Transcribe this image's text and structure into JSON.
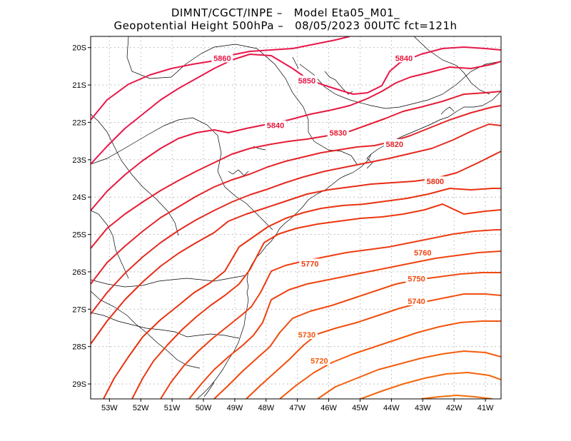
{
  "header": {
    "line1": "DIMNT/CGCT/INPE –   Model Eta05_M01_",
    "line2": "Geopotential Height 500hPa –   08/05/2023 00UTC fct=121h"
  },
  "axes": {
    "lon_ticks": [
      "53W",
      "52W",
      "51W",
      "50W",
      "49W",
      "48W",
      "47W",
      "46W",
      "45W",
      "44W",
      "43W",
      "42W",
      "41W"
    ],
    "lat_ticks": [
      "20S",
      "21S",
      "22S",
      "23S",
      "24S",
      "25S",
      "26S",
      "27S",
      "28S",
      "29S"
    ],
    "lon_range": [
      -53.6,
      -40.5
    ],
    "lat_range": [
      -29.4,
      -19.7
    ]
  },
  "contour_labels": [
    {
      "text": "5860",
      "lon": -49.4,
      "lat": -20.3,
      "color": "#e8174a"
    },
    {
      "text": "5850",
      "lon": -46.7,
      "lat": -20.9,
      "color": "#e8174a"
    },
    {
      "text": "5840",
      "lon": -43.6,
      "lat": -20.3,
      "color": "#e6183f"
    },
    {
      "text": "5840",
      "lon": -47.7,
      "lat": -22.1,
      "color": "#e6183f"
    },
    {
      "text": "5830",
      "lon": -45.7,
      "lat": -22.3,
      "color": "#e51d33"
    },
    {
      "text": "5820",
      "lon": -43.9,
      "lat": -22.6,
      "color": "#e42329"
    },
    {
      "text": "5800",
      "lon": -42.6,
      "lat": -23.6,
      "color": "#e62c16"
    },
    {
      "text": "5770",
      "lon": -46.6,
      "lat": -25.8,
      "color": "#ee3d12"
    },
    {
      "text": "5760",
      "lon": -43.0,
      "lat": -25.5,
      "color": "#ef4310"
    },
    {
      "text": "5750",
      "lon": -43.2,
      "lat": -26.2,
      "color": "#f0490f"
    },
    {
      "text": "5740",
      "lon": -43.2,
      "lat": -26.8,
      "color": "#f14f0e"
    },
    {
      "text": "5730",
      "lon": -46.7,
      "lat": -27.7,
      "color": "#f2560d"
    },
    {
      "text": "5720",
      "lon": -46.3,
      "lat": -28.4,
      "color": "#f35d0c"
    }
  ],
  "colors": {
    "grid": "#999999",
    "coast": "#000000"
  }
}
